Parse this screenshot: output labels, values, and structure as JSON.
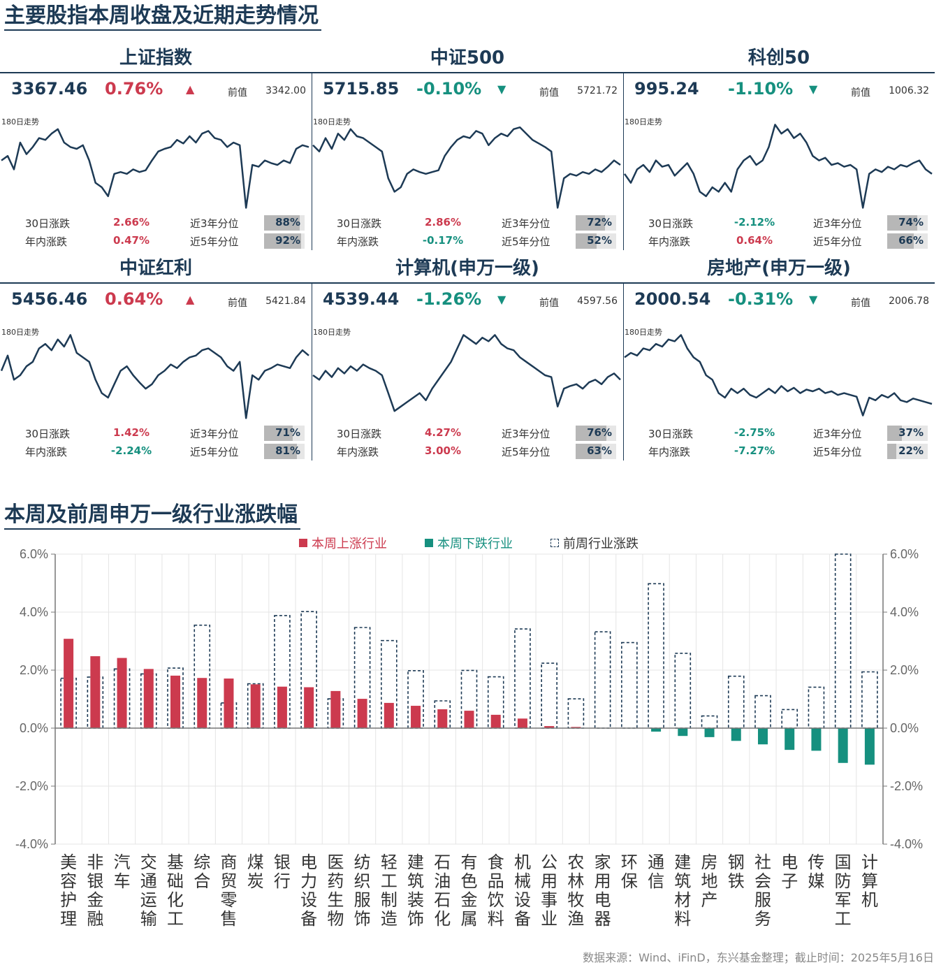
{
  "titles": {
    "section1": "主要股指本周收盘及近期走势情况",
    "section2": "本周及前周申万一级行业涨跌幅"
  },
  "labels": {
    "prev": "前值",
    "trend": "180日走势",
    "chg30": "30日涨跌",
    "ytd": "年内涨跌",
    "p3y": "近3年分位",
    "p5y": "近5年分位"
  },
  "colors": {
    "up": "#cc3a4e",
    "down": "#16907f",
    "navy": "#1d3a55",
    "grid": "#e5e5e5",
    "pct_fill": "#b7b7b7"
  },
  "indices": [
    {
      "name": "上证指数",
      "close": "3367.46",
      "change": "0.76%",
      "dir": "up",
      "prev": "3342.00",
      "chg30": "2.66%",
      "chg30_dir": "up",
      "ytd": "0.47%",
      "ytd_dir": "up",
      "p3y": "88%",
      "p3y_val": 0.88,
      "p5y": "92%",
      "p5y_val": 0.92,
      "spark": [
        0.55,
        0.6,
        0.45,
        0.75,
        0.62,
        0.7,
        0.8,
        0.78,
        0.85,
        0.9,
        0.75,
        0.7,
        0.68,
        0.72,
        0.55,
        0.3,
        0.25,
        0.15,
        0.4,
        0.42,
        0.4,
        0.45,
        0.42,
        0.44,
        0.55,
        0.65,
        0.68,
        0.7,
        0.78,
        0.74,
        0.82,
        0.75,
        0.85,
        0.88,
        0.8,
        0.78,
        0.7,
        0.75,
        0.72,
        0.02,
        0.5,
        0.48,
        0.55,
        0.52,
        0.5,
        0.55,
        0.52,
        0.68,
        0.72,
        0.7
      ]
    },
    {
      "name": "中证500",
      "close": "5715.85",
      "change": "-0.10%",
      "dir": "down",
      "prev": "5721.72",
      "chg30": "2.86%",
      "chg30_dir": "up",
      "ytd": "-0.17%",
      "ytd_dir": "down",
      "p3y": "72%",
      "p3y_val": 0.72,
      "p5y": "52%",
      "p5y_val": 0.52,
      "spark": [
        0.72,
        0.65,
        0.8,
        0.68,
        0.85,
        0.78,
        0.9,
        0.82,
        0.8,
        0.75,
        0.7,
        0.65,
        0.35,
        0.2,
        0.25,
        0.4,
        0.45,
        0.42,
        0.4,
        0.42,
        0.44,
        0.6,
        0.7,
        0.78,
        0.82,
        0.8,
        0.88,
        0.85,
        0.72,
        0.8,
        0.85,
        0.82,
        0.9,
        0.92,
        0.85,
        0.78,
        0.74,
        0.7,
        0.65,
        0.02,
        0.35,
        0.4,
        0.38,
        0.42,
        0.4,
        0.45,
        0.42,
        0.48,
        0.55,
        0.5
      ]
    },
    {
      "name": "科创50",
      "close": "995.24",
      "change": "-1.10%",
      "dir": "down",
      "prev": "1006.32",
      "chg30": "-2.12%",
      "chg30_dir": "down",
      "ytd": "0.64%",
      "ytd_dir": "up",
      "p3y": "74%",
      "p3y_val": 0.74,
      "p5y": "66%",
      "p5y_val": 0.66,
      "spark": [
        0.4,
        0.3,
        0.45,
        0.5,
        0.42,
        0.55,
        0.48,
        0.5,
        0.38,
        0.45,
        0.52,
        0.4,
        0.2,
        0.15,
        0.25,
        0.2,
        0.3,
        0.2,
        0.45,
        0.55,
        0.6,
        0.5,
        0.55,
        0.7,
        0.95,
        0.85,
        0.9,
        0.8,
        0.85,
        0.75,
        0.6,
        0.55,
        0.58,
        0.5,
        0.52,
        0.48,
        0.5,
        0.45,
        0.02,
        0.4,
        0.45,
        0.42,
        0.48,
        0.45,
        0.5,
        0.48,
        0.52,
        0.55,
        0.45,
        0.4
      ]
    },
    {
      "name": "中证红利",
      "close": "5456.46",
      "change": "0.64%",
      "dir": "up",
      "prev": "5421.84",
      "chg30": "1.42%",
      "chg30_dir": "up",
      "ytd": "-2.24%",
      "ytd_dir": "down",
      "p3y": "71%",
      "p3y_val": 0.71,
      "p5y": "81%",
      "p5y_val": 0.81,
      "spark": [
        0.55,
        0.72,
        0.45,
        0.5,
        0.6,
        0.65,
        0.8,
        0.85,
        0.78,
        0.9,
        0.82,
        0.95,
        0.75,
        0.7,
        0.65,
        0.45,
        0.3,
        0.25,
        0.4,
        0.55,
        0.6,
        0.5,
        0.42,
        0.35,
        0.4,
        0.5,
        0.55,
        0.62,
        0.58,
        0.65,
        0.7,
        0.72,
        0.78,
        0.8,
        0.75,
        0.7,
        0.6,
        0.55,
        0.65,
        0.02,
        0.5,
        0.45,
        0.55,
        0.58,
        0.62,
        0.6,
        0.58,
        0.7,
        0.78,
        0.72
      ]
    },
    {
      "name": "计算机(申万一级)",
      "close": "4539.44",
      "change": "-1.26%",
      "dir": "down",
      "prev": "4597.56",
      "chg30": "4.27%",
      "chg30_dir": "up",
      "ytd": "3.00%",
      "ytd_dir": "up",
      "p3y": "76%",
      "p3y_val": 0.76,
      "p5y": "63%",
      "p5y_val": 0.63,
      "spark": [
        0.5,
        0.45,
        0.55,
        0.48,
        0.58,
        0.52,
        0.6,
        0.55,
        0.62,
        0.58,
        0.55,
        0.5,
        0.3,
        0.1,
        0.15,
        0.2,
        0.25,
        0.3,
        0.22,
        0.35,
        0.45,
        0.55,
        0.65,
        0.8,
        0.95,
        0.9,
        0.85,
        0.92,
        0.88,
        0.95,
        0.85,
        0.8,
        0.78,
        0.7,
        0.65,
        0.6,
        0.55,
        0.5,
        0.48,
        0.15,
        0.35,
        0.38,
        0.4,
        0.35,
        0.42,
        0.45,
        0.4,
        0.48,
        0.52,
        0.45
      ]
    },
    {
      "name": "房地产(申万一级)",
      "close": "2000.54",
      "change": "-0.31%",
      "dir": "down",
      "prev": "2006.78",
      "chg30": "-2.75%",
      "chg30_dir": "down",
      "ytd": "-7.27%",
      "ytd_dir": "down",
      "p3y": "37%",
      "p3y_val": 0.37,
      "p5y": "22%",
      "p5y_val": 0.22,
      "spark": [
        0.7,
        0.75,
        0.72,
        0.8,
        0.78,
        0.85,
        0.82,
        0.9,
        0.88,
        0.95,
        0.8,
        0.7,
        0.65,
        0.5,
        0.45,
        0.3,
        0.25,
        0.35,
        0.3,
        0.35,
        0.28,
        0.25,
        0.3,
        0.35,
        0.3,
        0.38,
        0.32,
        0.36,
        0.3,
        0.34,
        0.32,
        0.35,
        0.3,
        0.32,
        0.28,
        0.3,
        0.28,
        0.26,
        0.05,
        0.25,
        0.22,
        0.28,
        0.25,
        0.3,
        0.22,
        0.2,
        0.24,
        0.22,
        0.2,
        0.18
      ]
    }
  ],
  "legend": {
    "up": "本周上涨行业",
    "down": "本周下跌行业",
    "prev": "前周行业涨跌"
  },
  "source": "数据来源：Wind、iFinD，东兴基金整理；截止时间：2025年5月16日",
  "chart_data": {
    "type": "bar",
    "categories": [
      "美容护理",
      "非银金融",
      "汽车",
      "交通运输",
      "基础化工",
      "综合",
      "商贸零售",
      "煤炭",
      "银行",
      "电力设备",
      "医药生物",
      "纺织服饰",
      "轻工制造",
      "建筑装饰",
      "石油石化",
      "有色金属",
      "食品饮料",
      "机械设备",
      "公用事业",
      "农林牧渔",
      "家用电器",
      "环保",
      "通信",
      "建筑材料",
      "房地产",
      "钢铁",
      "社会服务",
      "电子",
      "传媒",
      "国防军工",
      "计算机"
    ],
    "series": [
      {
        "name": "本周上涨行业 / 本周下跌行业",
        "values": [
          3.08,
          2.48,
          2.42,
          2.04,
          1.81,
          1.73,
          1.71,
          1.51,
          1.43,
          1.41,
          1.28,
          1.01,
          0.87,
          0.77,
          0.65,
          0.6,
          0.46,
          0.33,
          0.07,
          0.04,
          0.01,
          0.0,
          -0.12,
          -0.27,
          -0.31,
          -0.44,
          -0.56,
          -0.75,
          -0.78,
          -1.2,
          -1.26
        ]
      },
      {
        "name": "前周行业涨跌",
        "values": [
          1.72,
          1.76,
          2.04,
          1.87,
          2.07,
          3.55,
          0.87,
          1.53,
          3.88,
          4.02,
          1.01,
          3.47,
          3.02,
          1.98,
          0.94,
          1.99,
          1.77,
          3.42,
          2.24,
          1.01,
          3.32,
          2.95,
          4.98,
          2.58,
          0.42,
          1.79,
          1.12,
          0.64,
          1.41,
          6.7,
          1.94
        ]
      }
    ],
    "ylim": [
      -4,
      6
    ],
    "yticks": [
      "6.0%",
      "4.0%",
      "2.0%",
      "0.0%",
      "-2.0%",
      "-4.0%"
    ],
    "ytick_values": [
      6,
      4,
      2,
      0,
      -2,
      -4
    ],
    "grid": true,
    "legend_position": "top-center",
    "dual_axis": true
  }
}
